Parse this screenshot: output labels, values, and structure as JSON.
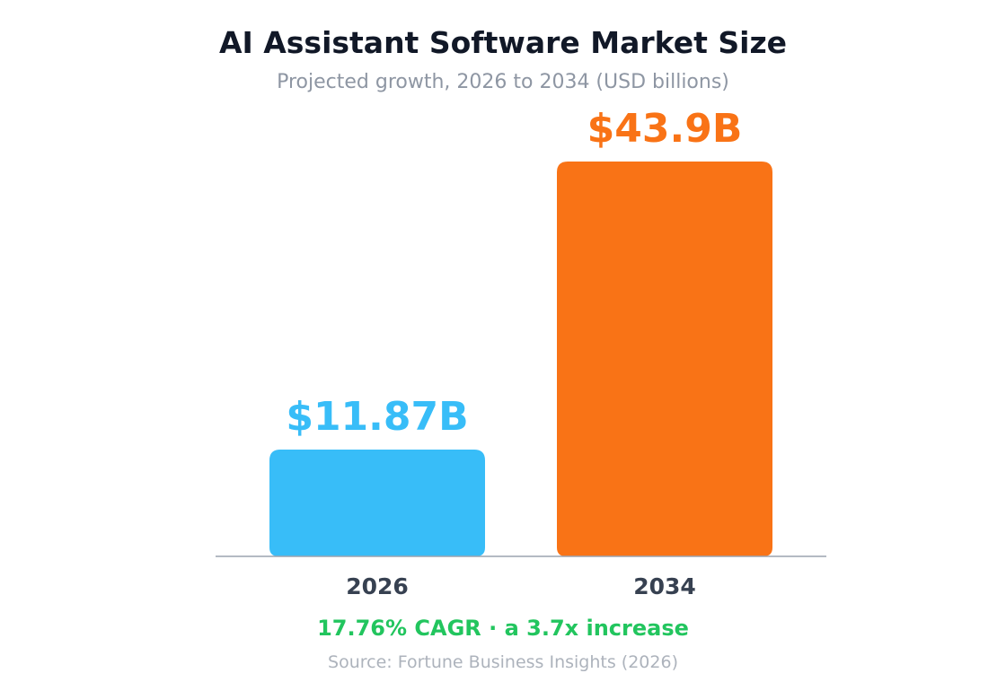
{
  "chart_data": {
    "type": "bar",
    "title": "AI Assistant Software Market Size",
    "subtitle": "Projected growth, 2026 to 2034 (USD billions)",
    "categories": [
      "2026",
      "2034"
    ],
    "values": [
      11.87,
      43.9
    ],
    "value_labels": [
      "$11.87B",
      "$43.9B"
    ],
    "colors": [
      "#38bdf8",
      "#f97316"
    ],
    "ylim": [
      0,
      43.9
    ],
    "grid": false,
    "legend": "none"
  },
  "footer": {
    "cagr_note": "17.76% CAGR · a 3.7x increase",
    "source": "Source: Fortune Business Insights (2026)"
  },
  "colors": {
    "title": "#111827",
    "subtitle": "#8e96a3",
    "tick_label": "#374151",
    "axis": "#9ca3af",
    "cagr": "#22c55e",
    "source": "#adb3bc"
  }
}
